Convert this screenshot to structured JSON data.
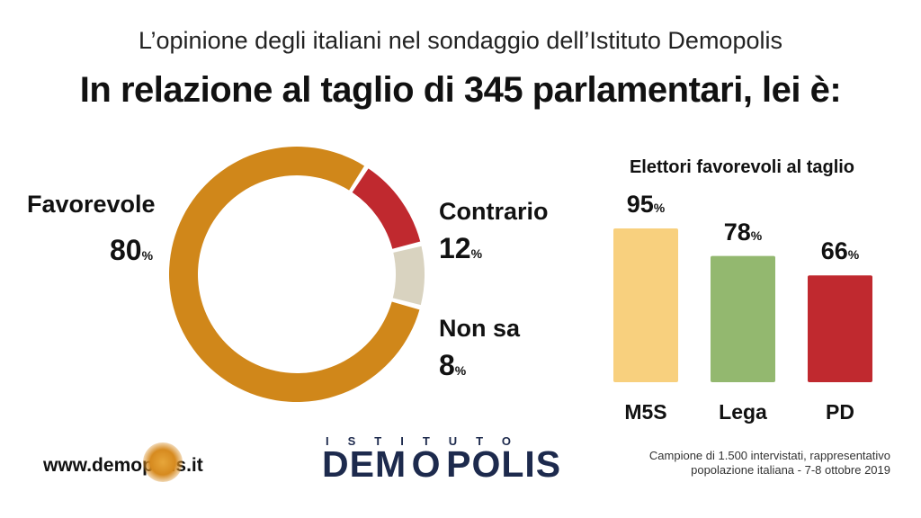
{
  "header": {
    "subtitle": "L’opinione degli italiani nel sondaggio dell’Istituto Demopolis",
    "title": "In relazione al taglio di 345 parlamentari, lei è:"
  },
  "donut": {
    "segments": [
      {
        "label": "Favorevole",
        "value": 80,
        "display": "80",
        "color": "#d0871a"
      },
      {
        "label": "Contrario",
        "value": 12,
        "display": "12",
        "color": "#c0292f"
      },
      {
        "label": "Non sa",
        "value": 8,
        "display": "8",
        "color": "#d9d3c0"
      }
    ],
    "pct_symbol": "%"
  },
  "chart_data": [
    {
      "type": "pie",
      "categories": [
        "Favorevole",
        "Contrario",
        "Non sa"
      ],
      "values": [
        80,
        12,
        8
      ],
      "title": "In relazione al taglio di 345 parlamentari, lei è:"
    },
    {
      "type": "bar",
      "title": "Elettori favorevoli al taglio",
      "categories": [
        "M5S",
        "Lega",
        "PD"
      ],
      "values": [
        95,
        78,
        66
      ],
      "colors": [
        "#f8d07e",
        "#93b86f",
        "#c0292f"
      ],
      "ylim": [
        0,
        100
      ]
    }
  ],
  "bar_title": "Elettori favorevoli al taglio",
  "footer": {
    "website": "www.demopolis.it",
    "logo_top": "ISTITUTO",
    "logo_main_left": "DEM",
    "logo_main_right": "POLIS",
    "footnote_line1": "Campione di 1.500 intervistati, rappresentativo",
    "footnote_line2": "popolazione italiana - 7-8 ottobre 2019"
  }
}
